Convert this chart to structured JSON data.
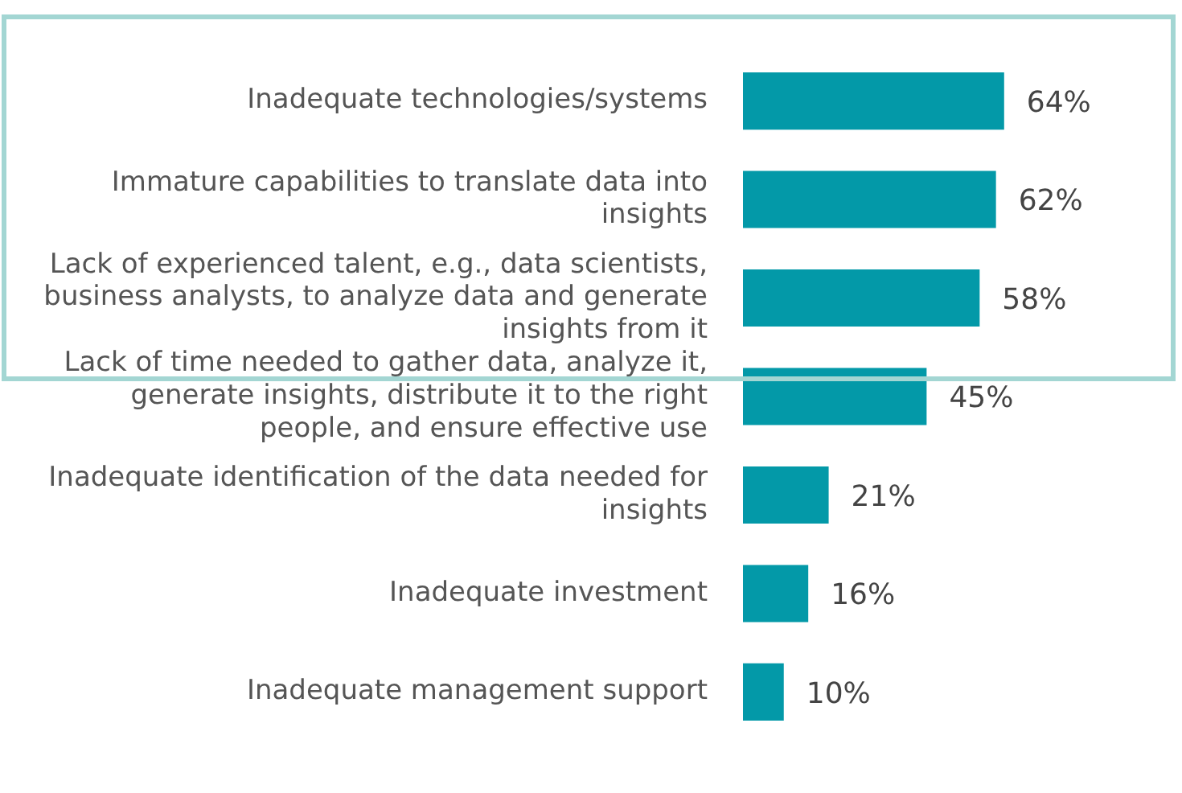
{
  "chart_data": {
    "type": "bar",
    "orientation": "horizontal",
    "categories": [
      "Inadequate technologies/systems",
      "Immature capabilities to translate data into insights",
      "Lack of experienced talent, e.g., data scientists, business analysts, to analyze data and generate insights from it",
      "Lack of time needed to gather data, analyze it, generate insights, distribute it to the right people, and ensure effective use",
      "Inadequate identification of the data needed for insights",
      "Inadequate investment",
      "Inadequate management support"
    ],
    "values": [
      64,
      62,
      58,
      45,
      21,
      16,
      10
    ],
    "value_labels": [
      "64%",
      "62%",
      "58%",
      "45%",
      "21%",
      "16%",
      "10%"
    ],
    "color": "#0399a8",
    "grid": false,
    "legend": false
  }
}
